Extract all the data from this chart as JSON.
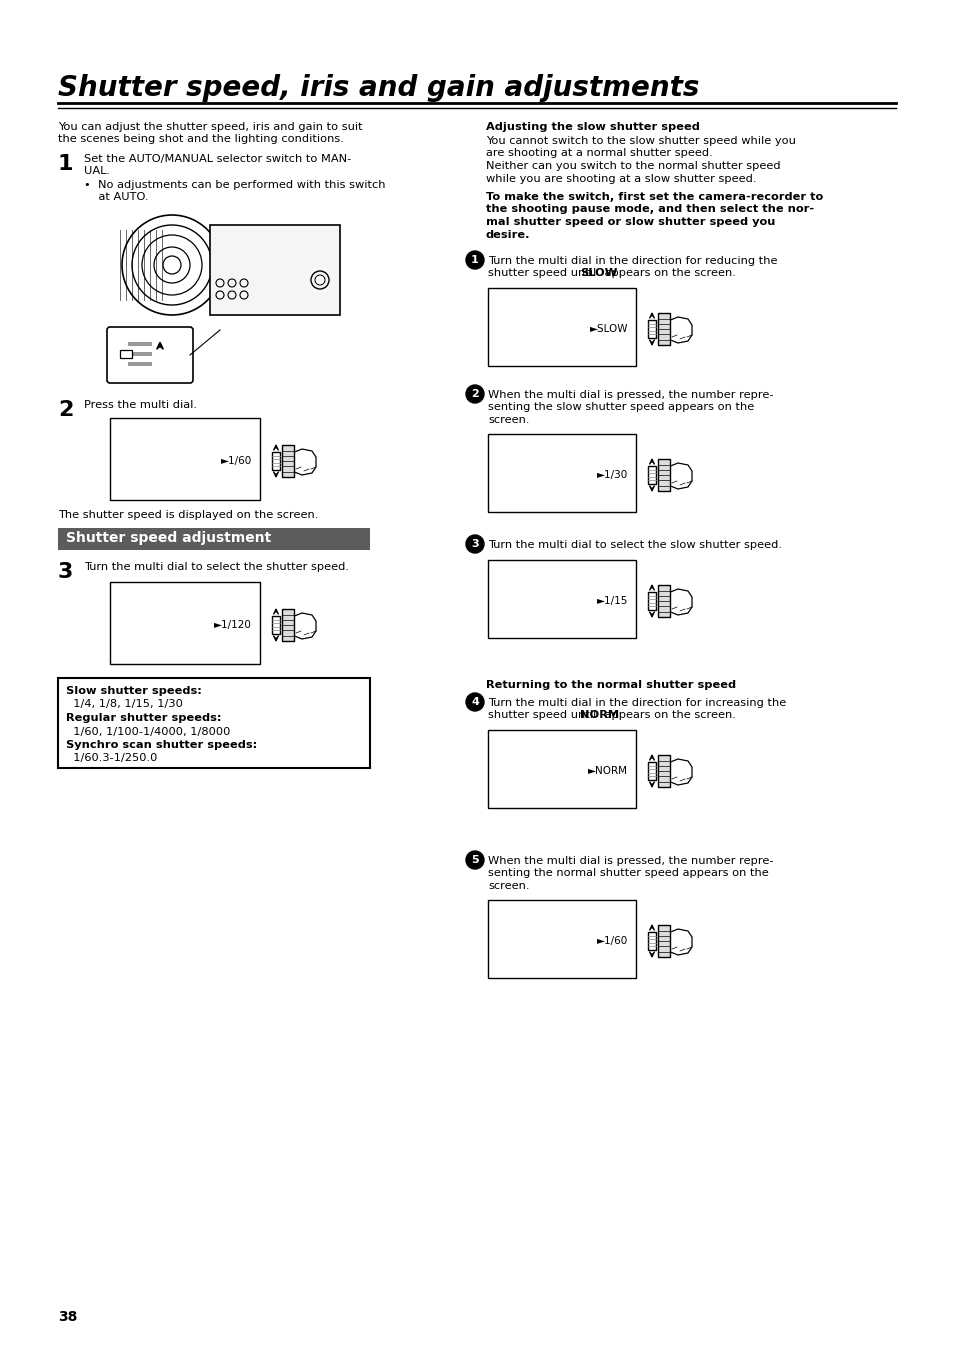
{
  "title": "Shutter speed, iris and gain adjustments",
  "page_number": "38",
  "bg": "#ffffff",
  "section_header_bg": "#5c5c5c",
  "section_header_text": "Shutter speed adjustment",
  "intro1": "You can adjust the shutter speed, iris and gain to suit",
  "intro2": "the scenes being shot and the lighting conditions.",
  "s1_line1": "Set the AUTO/MANUAL selector switch to MAN-",
  "s1_line2": "UAL.",
  "s1_bullet1": "•  No adjustments can be performed with this switch",
  "s1_bullet2": "    at AUTO.",
  "s2_head": "Press the multi dial.",
  "s2_screen": "►1/60",
  "s2_caption": "The shutter speed is displayed on the screen.",
  "s3_head": "Turn the multi dial to select the shutter speed.",
  "s3_screen": "►1/120",
  "ib1_bold": "Slow shutter speeds:",
  "ib1_norm": "  1/4, 1/8, 1/15, 1/30",
  "ib2_bold": "Regular shutter speeds:",
  "ib2_norm": "  1/60, 1/100-1/4000, 1/8000",
  "ib3_bold": "Synchro scan shutter speeds:",
  "ib3_norm": "  1/60.3-1/250.0",
  "rh1": "Adjusting the slow shutter speed",
  "rp1": "You cannot switch to the slow shutter speed while you",
  "rp2": "are shooting at a normal shutter speed.",
  "rp3": "Neither can you switch to the normal shutter speed",
  "rp4": "while you are shooting at a slow shutter speed.",
  "rb1": "To make the switch, first set the camera-recorder to",
  "rb2": "the shooting pause mode, and then select the nor-",
  "rb3": "mal shutter speed or slow shutter speed you",
  "rb4": "desire.",
  "c1a": "Turn the multi dial in the direction for reducing the",
  "c1b_pre": "shutter speed until ",
  "c1b_bold": "SLOW",
  "c1b_post": " appears on the screen.",
  "c1_screen": "►SLOW",
  "c2a": "When the multi dial is pressed, the number repre-",
  "c2b": "senting the slow shutter speed appears on the",
  "c2c": "screen.",
  "c2_screen": "►1/30",
  "c3a": "Turn the multi dial to select the slow shutter speed.",
  "c3_screen": "►1/15",
  "rh2": "Returning to the normal shutter speed",
  "c4a": "Turn the multi dial in the direction for increasing the",
  "c4b_pre": "shutter speed until ",
  "c4b_bold": "NORM",
  "c4b_post": " appears on the screen.",
  "c4_screen": "►NORM",
  "c5a": "When the multi dial is pressed, the number repre-",
  "c5b": "senting the normal shutter speed appears on the",
  "c5c": "screen.",
  "c5_screen": "►1/60"
}
